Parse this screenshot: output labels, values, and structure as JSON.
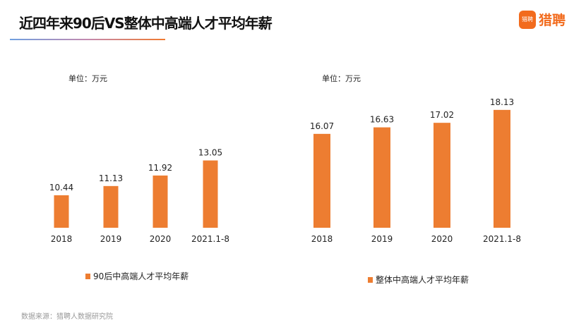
{
  "title": "近四年来90后VS整体中高端人才平均年薪",
  "brand": {
    "icon_text": "猎聘",
    "name": "猎聘",
    "color": "#f26b1d"
  },
  "source": "数据来源：猎聘人数据研究院",
  "chart_data": [
    {
      "type": "bar",
      "title": "",
      "unit_label": "单位：万元",
      "categories": [
        "2018",
        "2019",
        "2020",
        "2021.1-8"
      ],
      "values": [
        10.44,
        11.13,
        11.92,
        13.05
      ],
      "series_name": "90后中高端人才平均年薪",
      "color": "#ed7d31",
      "ylim": [
        8,
        14
      ],
      "legend": "bottom"
    },
    {
      "type": "bar",
      "title": "",
      "unit_label": "单位：万元",
      "categories": [
        "2018",
        "2019",
        "2020",
        "2021.1-8"
      ],
      "values": [
        16.07,
        16.63,
        17.02,
        18.13
      ],
      "series_name": "整体中高端人才平均年薪",
      "color": "#ed7d31",
      "ylim": [
        8,
        19
      ],
      "legend": "bottom"
    }
  ]
}
